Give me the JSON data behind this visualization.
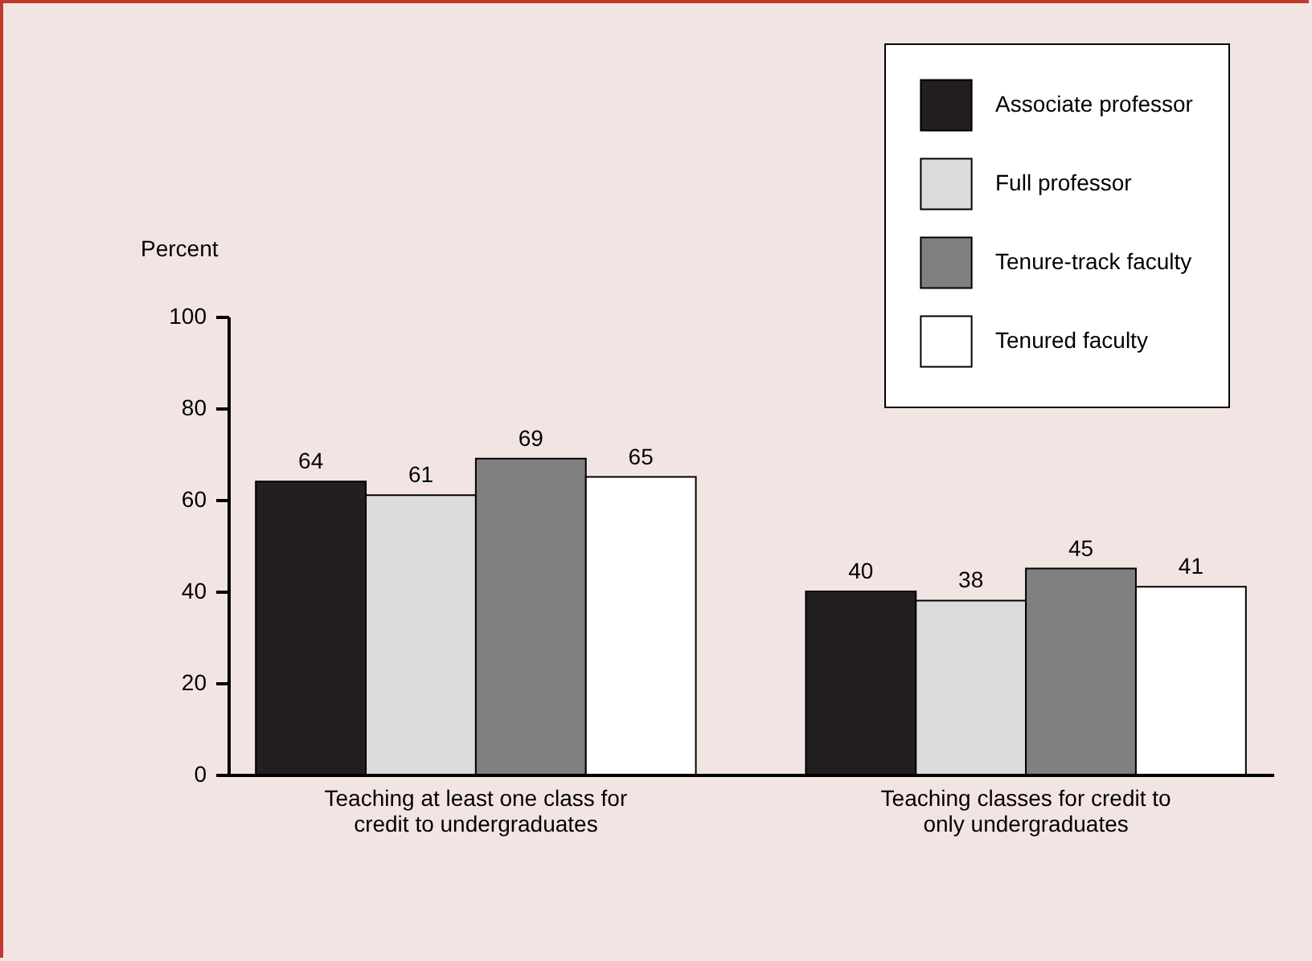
{
  "chart_data": {
    "type": "bar",
    "ylabel": "Percent",
    "categories": [
      "Teaching at least one class for credit to undergraduates",
      "Teaching classes for credit to only undergraduates"
    ],
    "series": [
      {
        "name": "Associate professor",
        "color": "#231f20",
        "values": [
          64,
          40
        ]
      },
      {
        "name": "Full professor",
        "color": "#dcdcdc",
        "values": [
          61,
          38
        ]
      },
      {
        "name": "Tenure-track faculty",
        "color": "#808080",
        "values": [
          69,
          45
        ]
      },
      {
        "name": "Tenured faculty",
        "color": "#ffffff",
        "values": [
          65,
          41
        ]
      }
    ],
    "ylim": [
      0,
      100
    ],
    "yticks": [
      0,
      20,
      40,
      60,
      80,
      100
    ],
    "grid": false,
    "legend": "top right",
    "data_labels": true
  }
}
